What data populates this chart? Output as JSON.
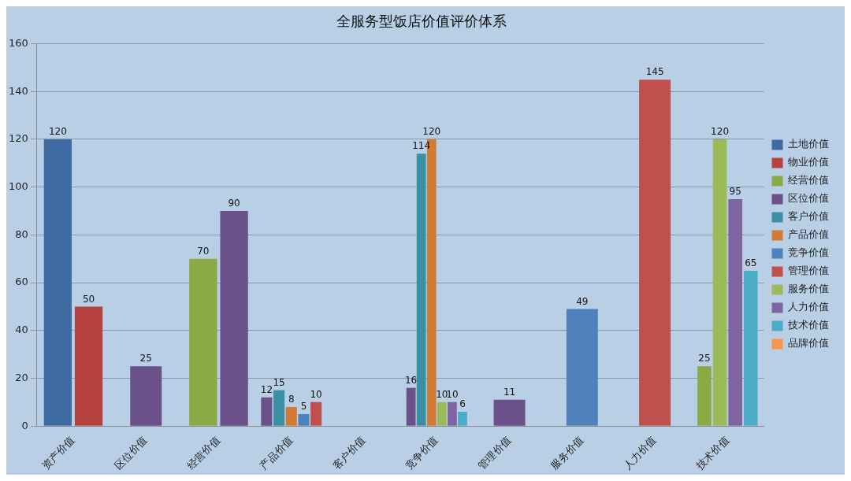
{
  "chart_data": {
    "type": "bar",
    "title": "全服务型饭店价值评价体系",
    "categories": [
      "资产价值",
      "区位价值",
      "经营价值",
      "产品价值",
      "客户价值",
      "竞争价值",
      "管理价值",
      "服务价值",
      "人力价值",
      "技术价值"
    ],
    "series": [
      {
        "name": "土地价值",
        "color": "#3f6ba3",
        "values": [
          120,
          null,
          null,
          null,
          null,
          null,
          null,
          null,
          null,
          null
        ]
      },
      {
        "name": "物业价值",
        "color": "#b4433f",
        "values": [
          50,
          null,
          null,
          null,
          null,
          null,
          null,
          null,
          null,
          null
        ]
      },
      {
        "name": "经营价值",
        "color": "#8aaa45",
        "values": [
          null,
          null,
          70,
          null,
          null,
          null,
          null,
          null,
          null,
          25
        ]
      },
      {
        "name": "区位价值",
        "color": "#6a5189",
        "values": [
          null,
          25,
          90,
          12,
          null,
          16,
          11,
          null,
          null,
          null
        ]
      },
      {
        "name": "客户价值",
        "color": "#3a90a2",
        "values": [
          null,
          null,
          null,
          15,
          null,
          114,
          null,
          null,
          null,
          null
        ]
      },
      {
        "name": "产品价值",
        "color": "#d07c35",
        "values": [
          null,
          null,
          null,
          8,
          null,
          120,
          null,
          null,
          null,
          null
        ]
      },
      {
        "name": "竞争价值",
        "color": "#4f81bd",
        "values": [
          null,
          null,
          null,
          5,
          null,
          null,
          null,
          49,
          null,
          null
        ]
      },
      {
        "name": "管理价值",
        "color": "#c0504d",
        "values": [
          null,
          null,
          null,
          10,
          null,
          null,
          null,
          null,
          145,
          null
        ]
      },
      {
        "name": "服务价值",
        "color": "#9bbb59",
        "values": [
          null,
          null,
          null,
          null,
          null,
          10,
          null,
          null,
          null,
          120
        ]
      },
      {
        "name": "人力价值",
        "color": "#8064a2",
        "values": [
          null,
          null,
          null,
          null,
          null,
          10,
          null,
          null,
          null,
          95
        ]
      },
      {
        "name": "技术价值",
        "color": "#4bacc6",
        "values": [
          null,
          null,
          null,
          null,
          null,
          6,
          null,
          null,
          null,
          65
        ]
      },
      {
        "name": "品牌价值",
        "color": "#f79646",
        "values": [
          null,
          null,
          null,
          null,
          null,
          null,
          null,
          null,
          null,
          null
        ]
      }
    ],
    "ylim": [
      0,
      160
    ],
    "yticks": [
      0,
      20,
      40,
      60,
      80,
      100,
      120,
      140,
      160
    ],
    "grid": "y",
    "legend": "right",
    "data_labels": true
  }
}
